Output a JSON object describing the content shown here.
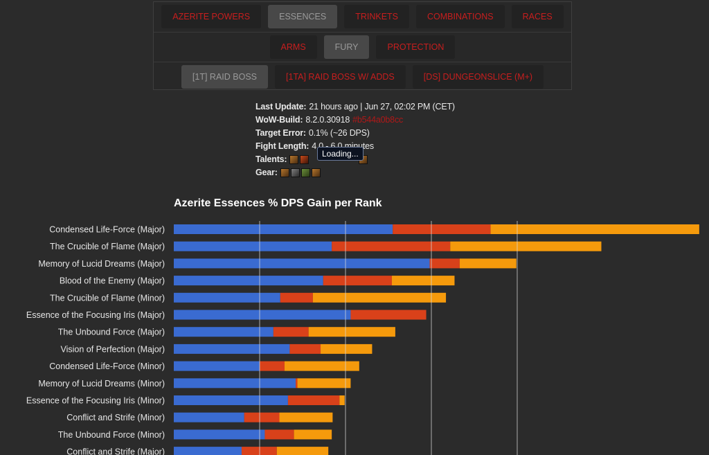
{
  "nav": {
    "row1": [
      {
        "label": "AZERITE POWERS",
        "active": false
      },
      {
        "label": "ESSENCES",
        "active": true
      },
      {
        "label": "TRINKETS",
        "active": false
      },
      {
        "label": "COMBINATIONS",
        "active": false
      },
      {
        "label": "RACES",
        "active": false
      }
    ],
    "row2": [
      {
        "label": "ARMS",
        "active": false
      },
      {
        "label": "FURY",
        "active": true
      },
      {
        "label": "PROTECTION",
        "active": false
      }
    ],
    "row3": [
      {
        "label": "[1T] RAID BOSS",
        "active": true
      },
      {
        "label": "[1TA] RAID BOSS W/ ADDS",
        "active": false
      },
      {
        "label": "[DS] DUNGEONSLICE (M+)",
        "active": false
      }
    ]
  },
  "info": {
    "last_update_label": "Last Update:",
    "last_update_value": "21 hours ago | Jun 27, 02:02 PM (CET)",
    "build_label": "WoW-Build:",
    "build_value": "8.2.0.30918",
    "build_link": "#b544a0b8cc",
    "target_error_label": "Target Error:",
    "target_error_value": "0.1% (~26 DPS)",
    "fight_length_label": "Fight Length:",
    "fight_length_value": "4.0 - 6.0 minutes",
    "talents_label": "Talents:",
    "gear_label": "Gear:",
    "tooltip": "Loading..."
  },
  "colors": {
    "rank1": "#3a6bd1",
    "rank2": "#d9411a",
    "rank3": "#f59a0c"
  },
  "chart_data": {
    "type": "bar",
    "stacked": true,
    "orientation": "horizontal",
    "title": "Azerite Essences % DPS Gain per Rank",
    "categories": [
      "Condensed Life-Force (Major)",
      "The Crucible of Flame (Major)",
      "Memory of Lucid Dreams (Major)",
      "Blood of the Enemy (Major)",
      "The Crucible of Flame (Minor)",
      "Essence of the Focusing Iris (Major)",
      "The Unbound Force (Major)",
      "Vision of Perfection (Major)",
      "Condensed Life-Force (Minor)",
      "Memory of Lucid Dreams (Minor)",
      "Essence of the Focusing Iris (Minor)",
      "Conflict and Strife (Minor)",
      "The Unbound Force (Minor)",
      "Conflict and Strife (Major)"
    ],
    "series": [
      {
        "values": [
          2.55,
          1.84,
          2.98,
          1.74,
          1.24,
          2.06,
          1.16,
          1.35,
          1.0,
          1.42,
          1.33,
          0.82,
          1.06,
          0.79
        ]
      },
      {
        "values": [
          1.14,
          1.38,
          0.35,
          0.8,
          0.38,
          0.88,
          0.41,
          0.36,
          0.29,
          0.02,
          0.6,
          0.41,
          0.34,
          0.41
        ]
      },
      {
        "values": [
          2.43,
          1.76,
          0.66,
          0.73,
          1.55,
          0.0,
          1.01,
          0.6,
          0.87,
          0.62,
          0.06,
          0.62,
          0.44,
          0.6
        ]
      }
    ],
    "xlim": [
      0,
      6.2
    ],
    "grid": true,
    "gridlines_at": [
      1,
      2,
      3,
      4
    ]
  }
}
